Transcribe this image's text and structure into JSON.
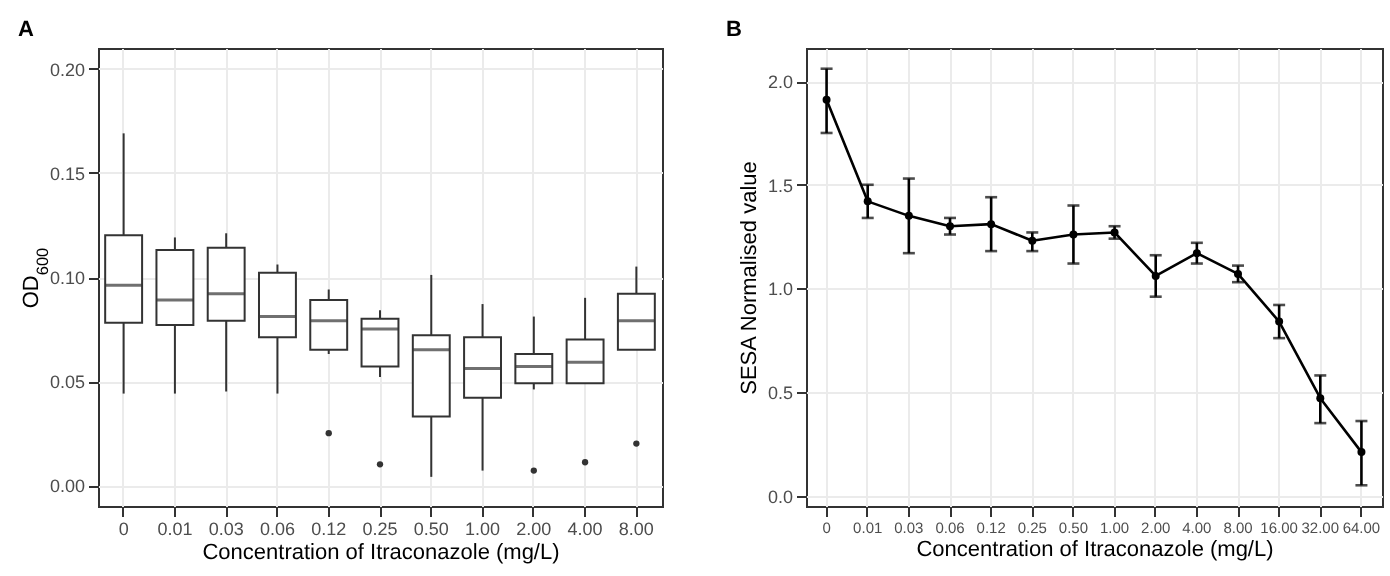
{
  "chart_data": [
    {
      "type": "box",
      "title": "A",
      "xlabel": "Concentration of Itraconazole (mg/L)",
      "ylabel": "OD$_{600}$",
      "categories": [
        "0",
        "0.01",
        "0.03",
        "0.06",
        "0.12",
        "0.25",
        "0.50",
        "1.00",
        "2.00",
        "4.00",
        "8.00"
      ],
      "boxes": [
        {
          "low": 0.044,
          "q1": 0.078,
          "median": 0.096,
          "q3": 0.12,
          "high": 0.169
        },
        {
          "low": 0.044,
          "q1": 0.077,
          "median": 0.089,
          "q3": 0.113,
          "high": 0.119
        },
        {
          "low": 0.045,
          "q1": 0.079,
          "median": 0.092,
          "q3": 0.114,
          "high": 0.121
        },
        {
          "low": 0.044,
          "q1": 0.071,
          "median": 0.081,
          "q3": 0.102,
          "high": 0.106
        },
        {
          "low": 0.063,
          "q1": 0.065,
          "median": 0.079,
          "q3": 0.089,
          "high": 0.094,
          "outliers": [
            0.025
          ]
        },
        {
          "low": 0.052,
          "q1": 0.057,
          "median": 0.075,
          "q3": 0.08,
          "high": 0.084,
          "outliers": [
            0.01
          ]
        },
        {
          "low": 0.004,
          "q1": 0.033,
          "median": 0.065,
          "q3": 0.072,
          "high": 0.101
        },
        {
          "low": 0.007,
          "q1": 0.042,
          "median": 0.056,
          "q3": 0.071,
          "high": 0.087
        },
        {
          "low": 0.046,
          "q1": 0.049,
          "median": 0.057,
          "q3": 0.063,
          "high": 0.081,
          "outliers": [
            0.007
          ]
        },
        {
          "low": 0.049,
          "q1": 0.049,
          "median": 0.059,
          "q3": 0.07,
          "high": 0.09,
          "outliers": [
            0.011
          ]
        },
        {
          "low": 0.065,
          "q1": 0.065,
          "median": 0.079,
          "q3": 0.092,
          "high": 0.105,
          "outliers": [
            0.02
          ]
        }
      ],
      "ylim": [
        -0.01,
        0.21
      ],
      "yticks": [
        {
          "value": 0,
          "label": "0.00"
        },
        0.05,
        {
          "value": 0.1,
          "label": "0.10"
        },
        0.15,
        {
          "value": 0.2,
          "label": "0.20"
        }
      ],
      "grid": true
    },
    {
      "type": "line",
      "title": "B",
      "xlabel": "Concentration of Itraconazole (mg/L)",
      "ylabel": "SESA Normalised value",
      "categories": [
        "0",
        "0.01",
        "0.03",
        "0.06",
        "0.12",
        "0.25",
        "0.50",
        "1.00",
        "2.00",
        "4.00",
        "8.00",
        "16.00",
        "32.00",
        "64.00"
      ],
      "series": [
        {
          "color": "#000000",
          "values": [
            1.91,
            1.42,
            1.35,
            1.3,
            1.31,
            1.23,
            1.26,
            1.27,
            1.06,
            1.17,
            1.07,
            0.84,
            0.47,
            0.21
          ],
          "errors": [
            [
              1.75,
              2.06
            ],
            [
              1.34,
              1.5
            ],
            [
              1.17,
              1.53
            ],
            [
              1.26,
              1.34
            ],
            [
              1.18,
              1.44
            ],
            [
              1.18,
              1.27
            ],
            [
              1.12,
              1.4
            ],
            [
              1.24,
              1.3
            ],
            [
              0.96,
              1.16
            ],
            [
              1.12,
              1.22
            ],
            [
              1.03,
              1.11
            ],
            [
              0.76,
              0.92
            ],
            [
              0.35,
              0.58
            ],
            [
              0.05,
              0.36
            ]
          ]
        }
      ],
      "ylim": [
        -0.05,
        2.16
      ],
      "yticks": [
        {
          "value": 0,
          "label": "0.0"
        },
        0.5,
        {
          "value": 1,
          "label": "1.0"
        },
        1.5,
        {
          "value": 2,
          "label": "2.0"
        }
      ],
      "grid": true,
      "marker": "circle",
      "line_style": "solid"
    }
  ]
}
